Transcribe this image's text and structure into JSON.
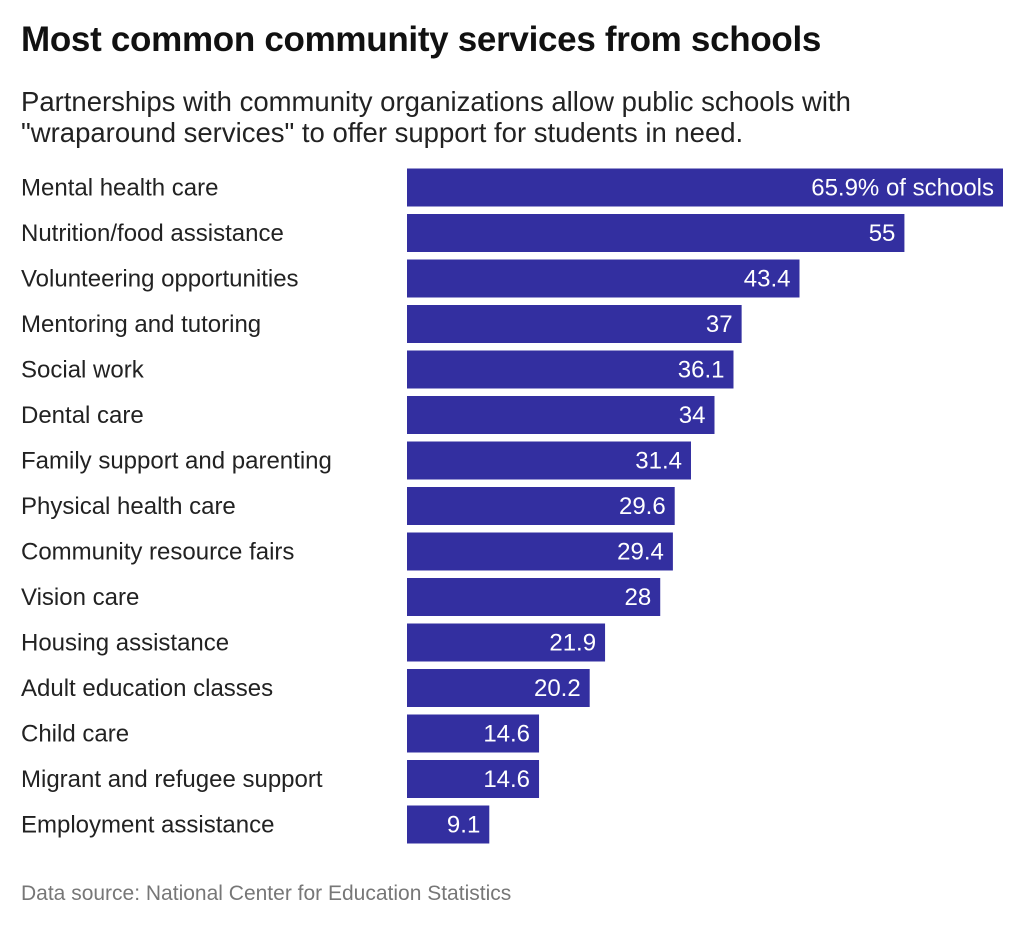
{
  "chart_data": {
    "type": "bar",
    "orientation": "horizontal",
    "title": "Most common community services from schools",
    "subtitle": "Partnerships with community organizations allow public schools with \"wraparound services\" to offer support for students in need.",
    "source": "Data source: National Center for Education Statistics",
    "categories": [
      "Mental health care",
      "Nutrition/food assistance",
      "Volunteering opportunities",
      "Mentoring and tutoring",
      "Social work",
      "Dental care",
      "Family support and parenting",
      "Physical health care",
      "Community resource fairs",
      "Vision care",
      "Housing assistance",
      "Adult education classes",
      "Child care",
      "Migrant and refugee support",
      "Employment assistance"
    ],
    "values": [
      65.9,
      55,
      43.4,
      37,
      36.1,
      34,
      31.4,
      29.6,
      29.4,
      28,
      21.9,
      20.2,
      14.6,
      14.6,
      9.1
    ],
    "data_labels": [
      "65.9% of schools",
      "55",
      "43.4",
      "37",
      "36.1",
      "34",
      "31.4",
      "29.6",
      "29.4",
      "28",
      "21.9",
      "20.2",
      "14.6",
      "14.6",
      "9.1"
    ],
    "xlim": [
      0,
      65.9
    ],
    "grid": false,
    "bar_color": "#332FA0"
  }
}
